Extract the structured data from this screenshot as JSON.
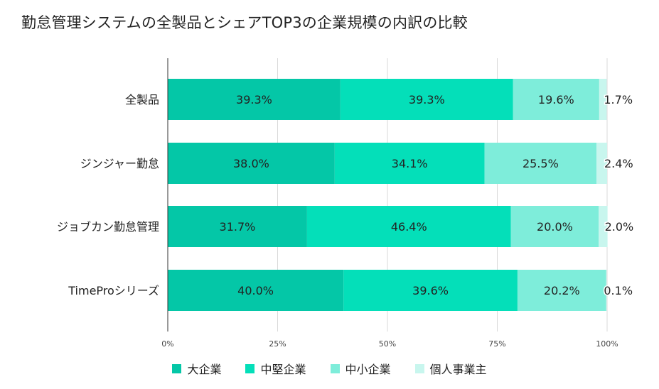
{
  "chart_data": {
    "type": "bar",
    "orientation": "horizontal",
    "stacked": "percent",
    "title": "勤怠管理システムの全製品とシェアTOP3の企業規模の内訳の比較",
    "categories": [
      "全製品",
      "ジンジャー勤怠",
      "ジョブカン勤怠管理",
      "TimeProシリーズ"
    ],
    "series": [
      {
        "name": "大企業",
        "color": "#04c7a7",
        "values": [
          39.3,
          38.0,
          31.7,
          40.0
        ],
        "labels": [
          "39.3%",
          "38.0%",
          "31.7%",
          "40.0%"
        ]
      },
      {
        "name": "中堅企業",
        "color": "#04dfb9",
        "values": [
          39.3,
          34.1,
          46.4,
          39.6
        ],
        "labels": [
          "39.3%",
          "34.1%",
          "46.4%",
          "39.6%"
        ]
      },
      {
        "name": "中小企業",
        "color": "#7eedda",
        "values": [
          19.6,
          25.5,
          20.0,
          20.2
        ],
        "labels": [
          "19.6%",
          "25.5%",
          "20.0%",
          "20.2%"
        ]
      },
      {
        "name": "個人事業主",
        "color": "#c8f6ee",
        "values": [
          1.7,
          2.4,
          2.0,
          0.1
        ],
        "labels": [
          "1.7%",
          "2.4%",
          "2.0%",
          "0.1%"
        ]
      }
    ],
    "xlim": [
      0,
      100
    ],
    "x_ticks": [
      "0%",
      "25%",
      "50%",
      "75%",
      "100%"
    ],
    "grid": true,
    "legend": "bottom"
  }
}
